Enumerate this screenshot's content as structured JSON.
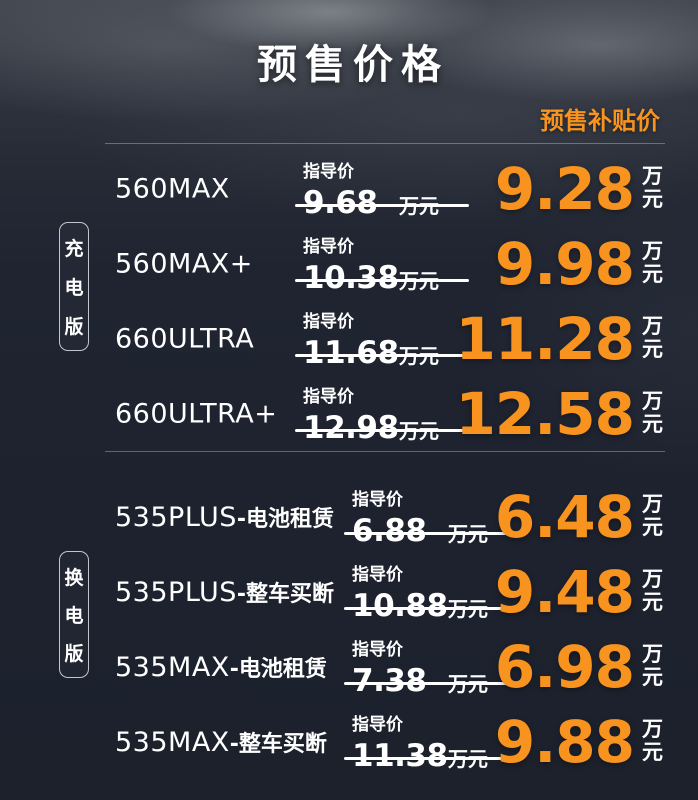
{
  "header": {
    "title": "预售价格",
    "subsidy_label": "预售补贴价"
  },
  "labels": {
    "guide_price": "指导价",
    "unit": "万元",
    "unit_wan": "万",
    "unit_yuan": "元"
  },
  "colors": {
    "accent_orange": "#f7931e",
    "background_dark": "#1d222e",
    "text_white": "#ffffff"
  },
  "sections": [
    {
      "version_label": "充电版",
      "rows": [
        {
          "model": "560MAX",
          "suffix": "",
          "guide_price": "9.68",
          "subsidy_price": "9.28"
        },
        {
          "model": "560MAX+",
          "suffix": "",
          "guide_price": "10.38",
          "subsidy_price": "9.98"
        },
        {
          "model": "660ULTRA",
          "suffix": "",
          "guide_price": "11.68",
          "subsidy_price": "11.28"
        },
        {
          "model": "660ULTRA+",
          "suffix": "",
          "guide_price": "12.98",
          "subsidy_price": "12.58"
        }
      ]
    },
    {
      "version_label": "换电版",
      "rows": [
        {
          "model": "535PLUS",
          "suffix": "-电池租赁",
          "guide_price": "6.88",
          "subsidy_price": "6.48"
        },
        {
          "model": "535PLUS",
          "suffix": "-整车买断",
          "guide_price": "10.88",
          "subsidy_price": "9.48"
        },
        {
          "model": "535MAX",
          "suffix": "-电池租赁",
          "guide_price": "7.38",
          "subsidy_price": "6.98"
        },
        {
          "model": "535MAX",
          "suffix": "-整车买断",
          "guide_price": "11.38",
          "subsidy_price": "9.88"
        }
      ]
    }
  ]
}
